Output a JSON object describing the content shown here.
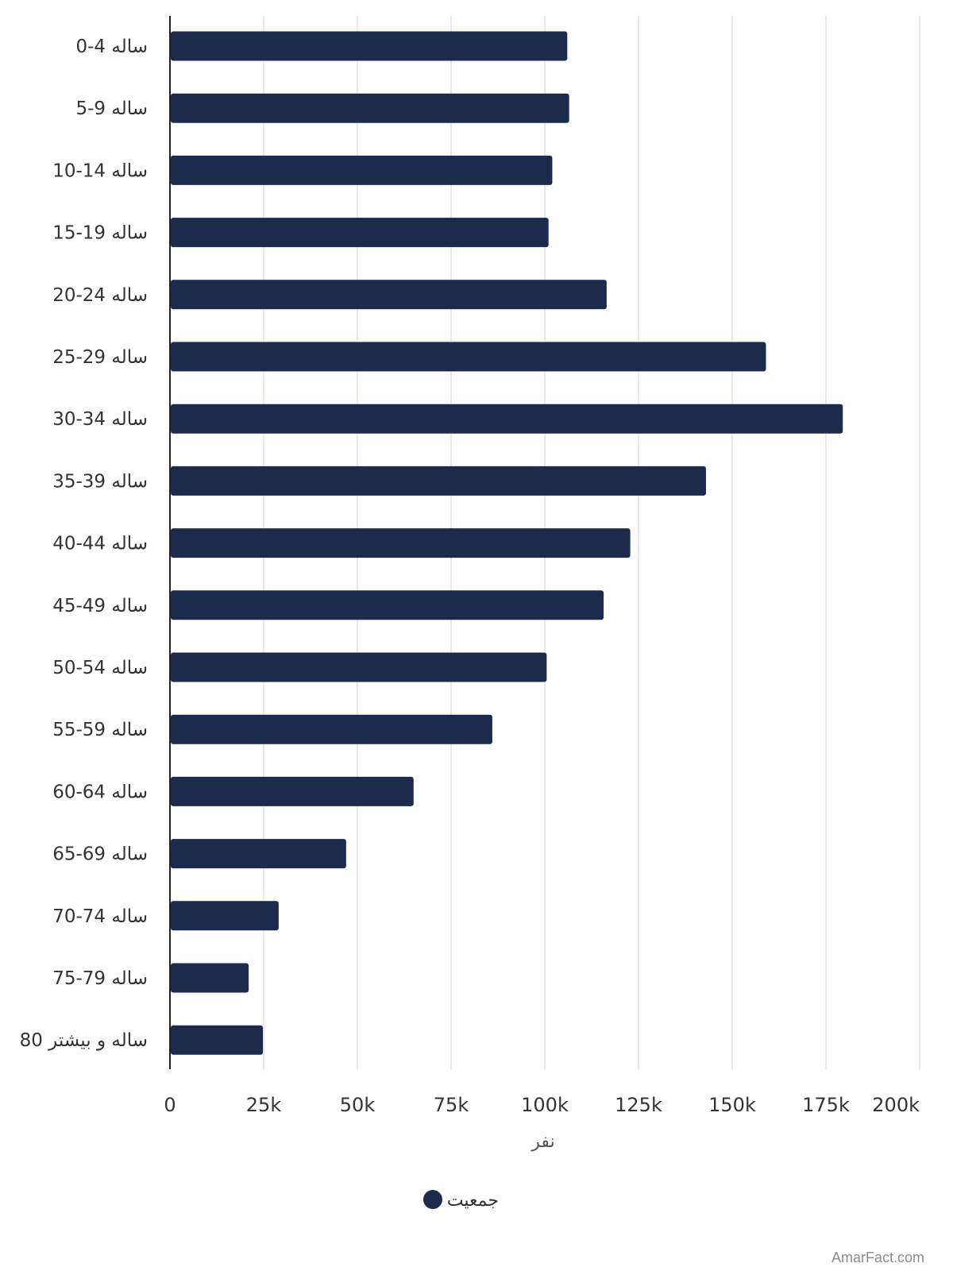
{
  "chart_data": {
    "type": "bar",
    "orientation": "horizontal",
    "categories": [
      "0-4 ساله",
      "5-9 ساله",
      "10-14 ساله",
      "15-19 ساله",
      "20-24 ساله",
      "25-29 ساله",
      "30-34 ساله",
      "35-39 ساله",
      "40-44 ساله",
      "45-49 ساله",
      "50-54 ساله",
      "55-59 ساله",
      "60-64 ساله",
      "65-69 ساله",
      "70-74 ساله",
      "75-79 ساله",
      "80 ساله و بیشتر"
    ],
    "series": [
      {
        "name": "جمعیت",
        "color": "#1c2a4b",
        "values": [
          106000,
          106500,
          102000,
          101000,
          116500,
          159000,
          179500,
          143000,
          122800,
          115700,
          100500,
          86000,
          65000,
          47000,
          29000,
          21000,
          24800
        ]
      }
    ],
    "xlabel": "نفر",
    "xlim": [
      0,
      200000
    ],
    "xticks": [
      "0",
      "25k",
      "50k",
      "75k",
      "100k",
      "125k",
      "150k",
      "175k",
      "200k"
    ],
    "grid": "vertical",
    "legend_position": "bottom-center"
  },
  "watermark": "AmarFact.com"
}
